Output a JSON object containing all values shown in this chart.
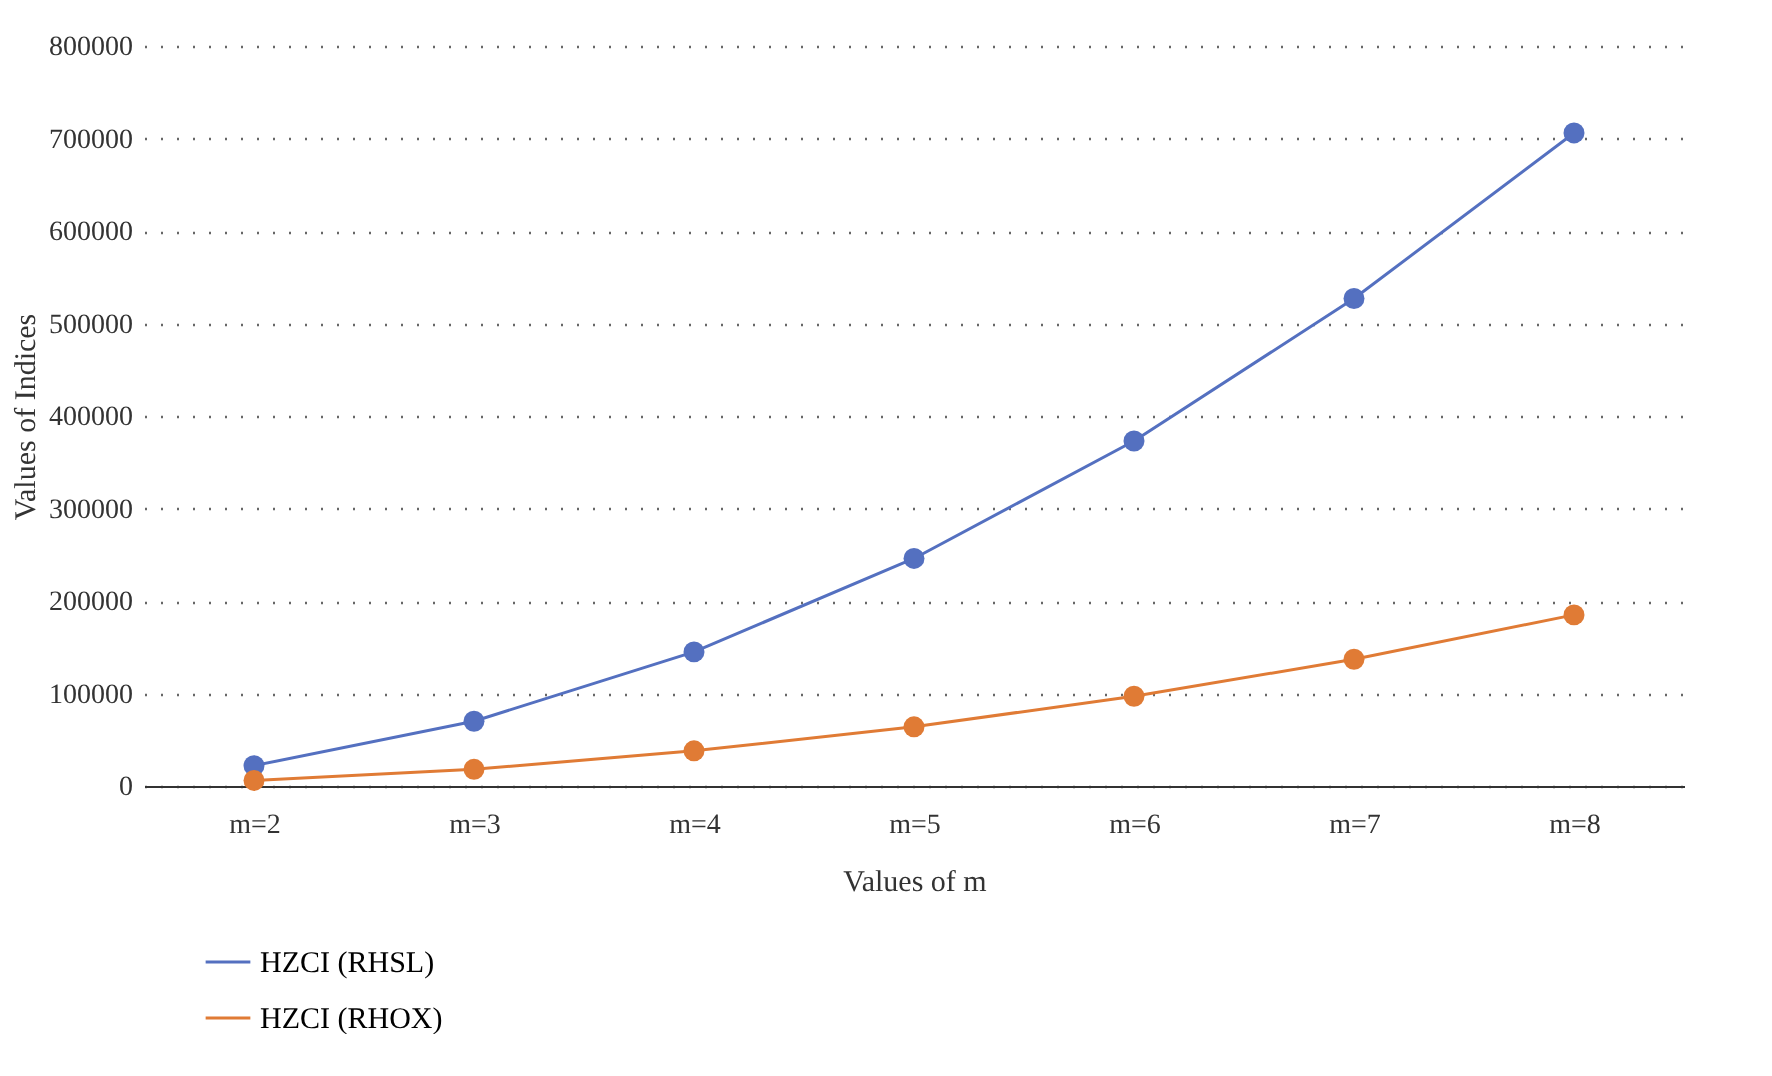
{
  "chart_data": {
    "type": "line",
    "xlabel": "Values of m",
    "ylabel": "Values of Indices",
    "categories": [
      "m=2",
      "m=3",
      "m=4",
      "m=5",
      "m=6",
      "m=7",
      "m=8"
    ],
    "series": [
      {
        "name": "HZCI (RHSL)",
        "color": "#5470c0",
        "values": [
          22000,
          70000,
          145000,
          246000,
          373000,
          527000,
          706000
        ]
      },
      {
        "name": "HZCI (RHOX)",
        "color": "#e07b35",
        "values": [
          6000,
          18000,
          38000,
          64000,
          97000,
          137000,
          185000
        ]
      }
    ],
    "ylim": [
      0,
      800000
    ],
    "yticks": [
      0,
      100000,
      200000,
      300000,
      400000,
      500000,
      600000,
      700000,
      800000
    ],
    "grid": "y",
    "legend": "bottom left",
    "marker": "circle",
    "line_style": "solid"
  }
}
